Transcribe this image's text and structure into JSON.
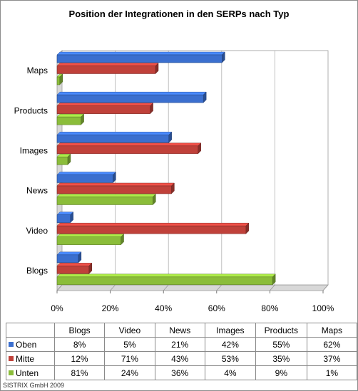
{
  "chart_data": {
    "type": "bar",
    "orientation": "horizontal",
    "title": "Position der Integrationen in den SERPs nach Typ",
    "categories": [
      "Blogs",
      "Video",
      "News",
      "Images",
      "Products",
      "Maps"
    ],
    "series": [
      {
        "name": "Oben",
        "color": "#3b6fcf",
        "values": [
          8,
          5,
          21,
          42,
          55,
          62
        ],
        "labels": [
          "8%",
          "5%",
          "21%",
          "42%",
          "55%",
          "62%"
        ]
      },
      {
        "name": "Mitte",
        "color": "#c0413a",
        "values": [
          12,
          71,
          43,
          53,
          35,
          37
        ],
        "labels": [
          "12%",
          "71%",
          "43%",
          "53%",
          "35%",
          "37%"
        ]
      },
      {
        "name": "Unten",
        "color": "#8bbd3a",
        "values": [
          81,
          24,
          36,
          4,
          9,
          1
        ],
        "labels": [
          "81%",
          "24%",
          "36%",
          "4%",
          "9%",
          "1%"
        ]
      }
    ],
    "xlim": [
      0,
      100
    ],
    "x_ticks": [
      "0%",
      "20%",
      "40%",
      "60%",
      "80%",
      "100%"
    ],
    "grid": true,
    "legend": "data-table"
  },
  "footer": "SISTRIX GmbH 2009"
}
